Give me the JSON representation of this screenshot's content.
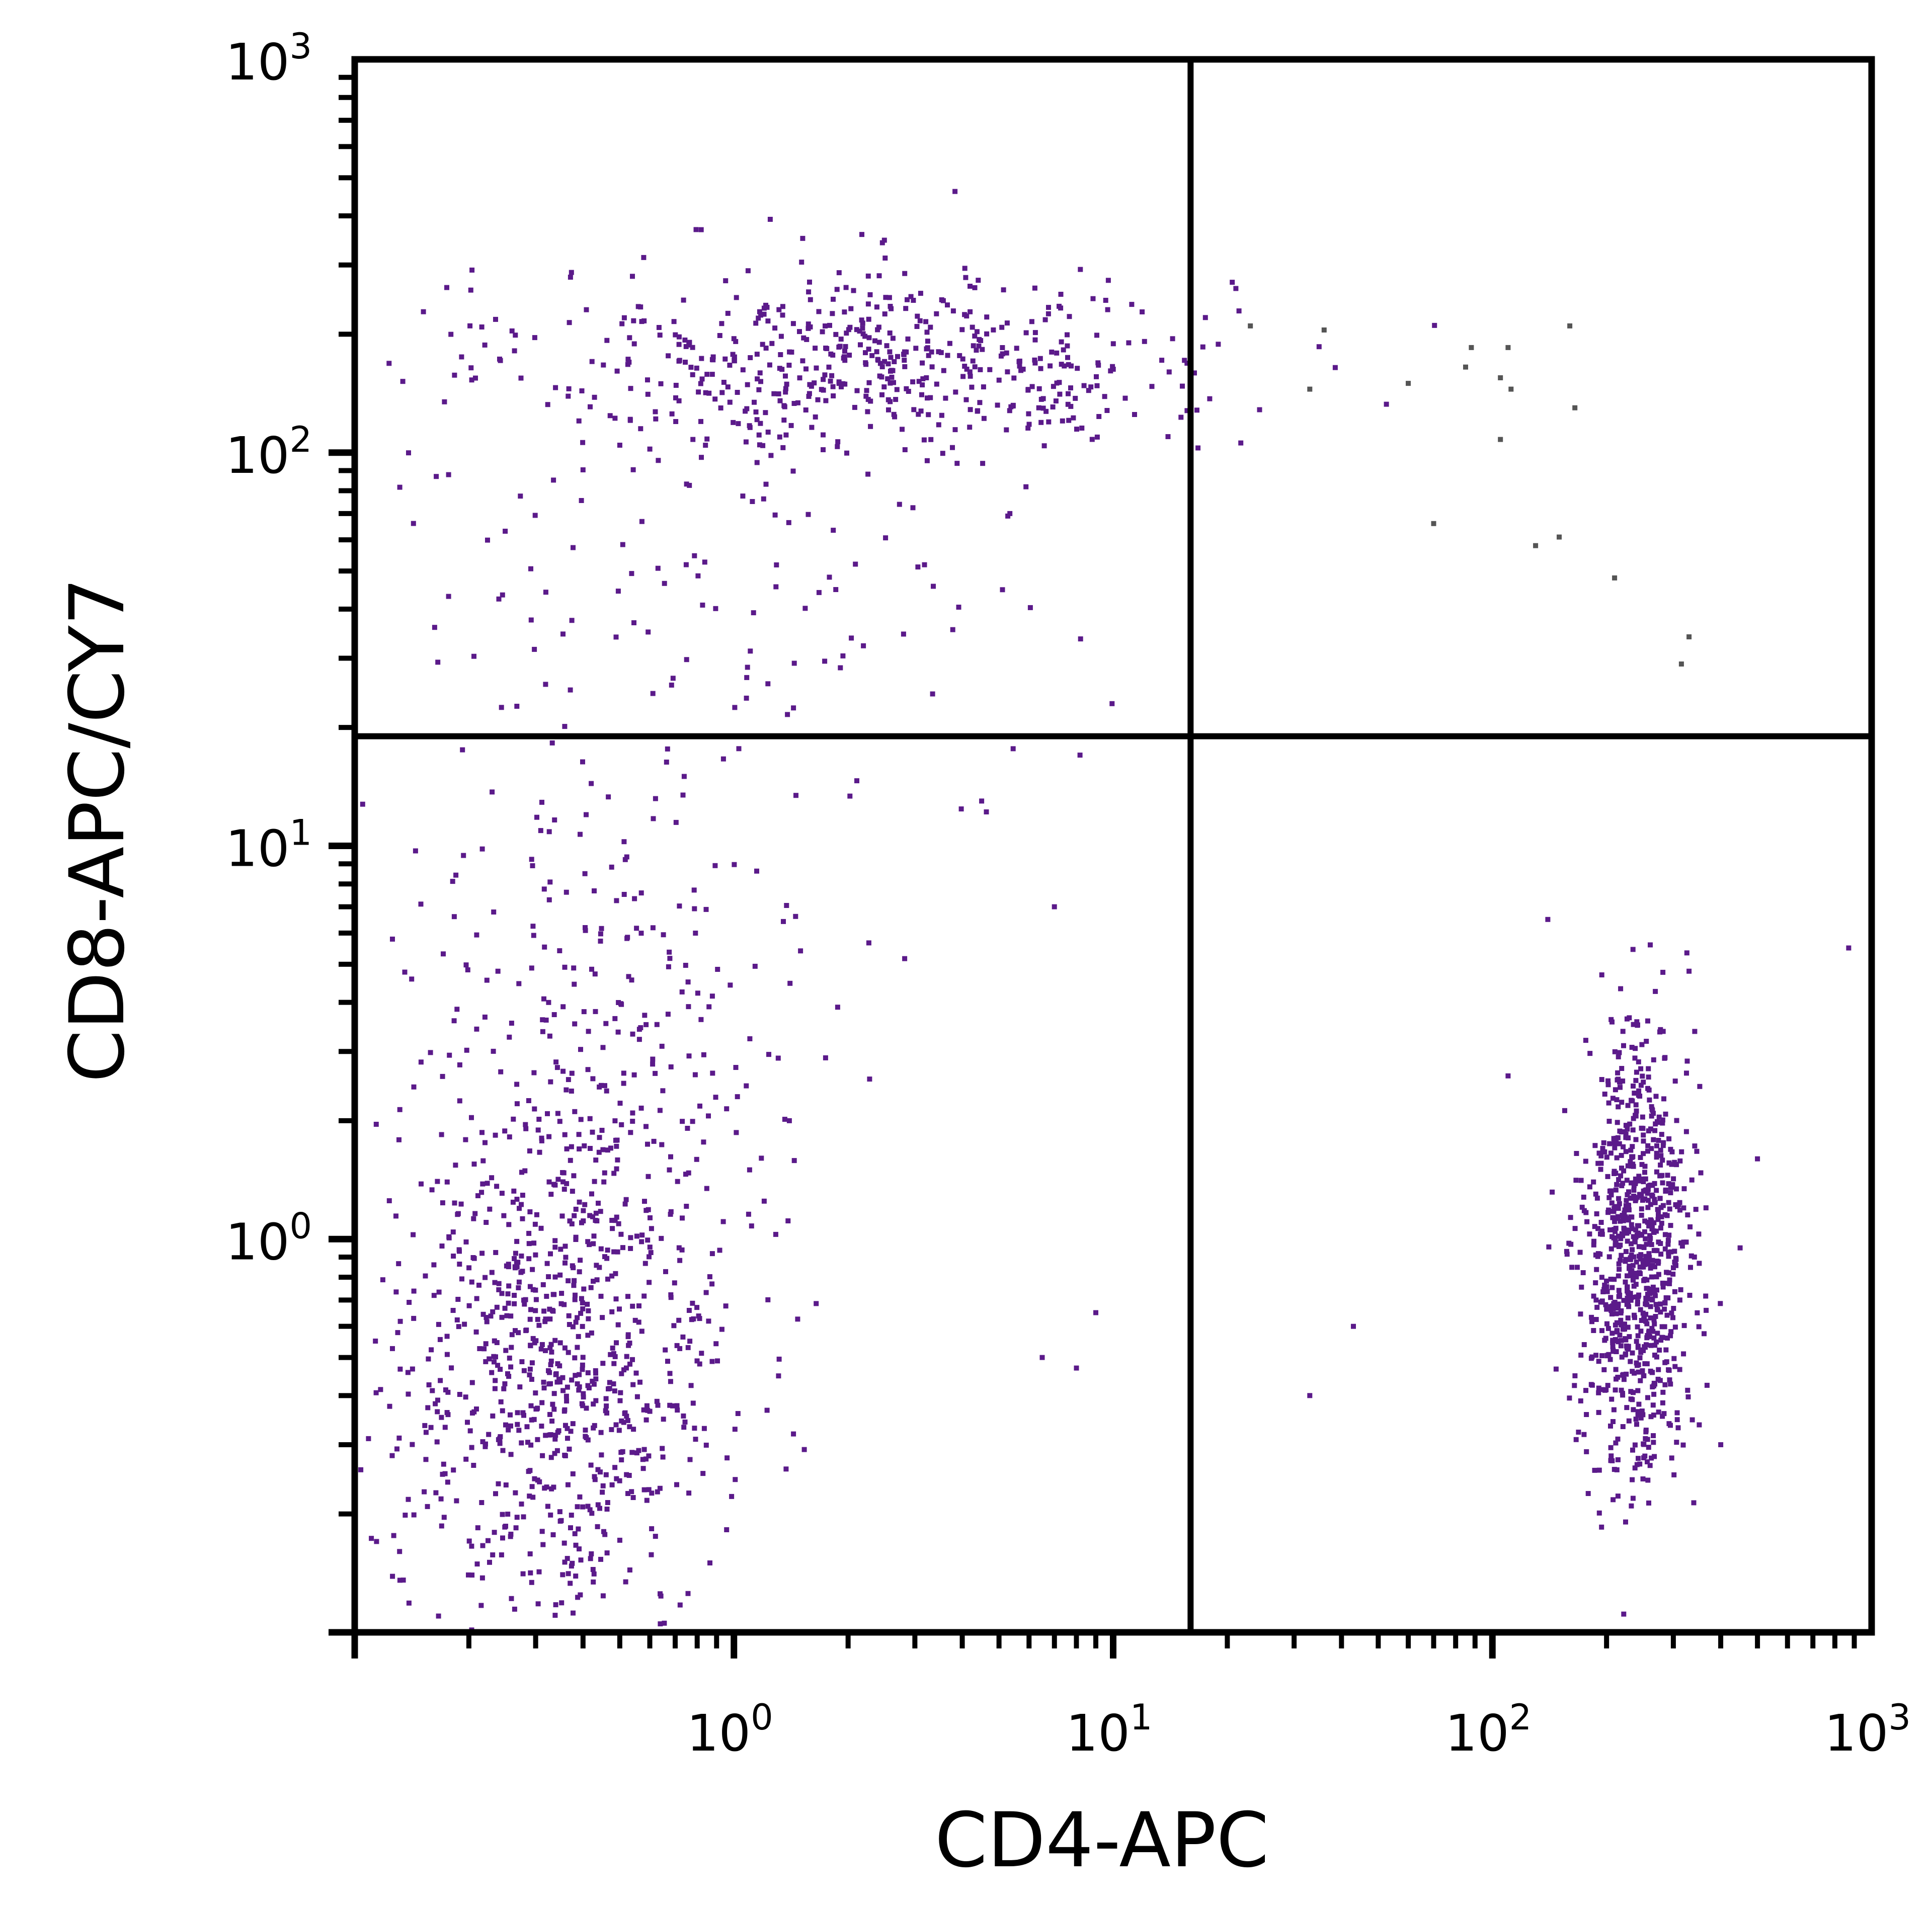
{
  "chart_data": {
    "type": "scatter",
    "xlabel": "CD4-APC",
    "ylabel": "CD8-APC/CY7",
    "xscale": "log",
    "yscale": "log",
    "xlim": [
      0.1,
      1000
    ],
    "ylim": [
      0.1,
      1000
    ],
    "x_ticks": [
      {
        "base": "10",
        "exp": "0",
        "value": 1
      },
      {
        "base": "10",
        "exp": "1",
        "value": 10
      },
      {
        "base": "10",
        "exp": "2",
        "value": 100
      },
      {
        "base": "10",
        "exp": "3",
        "value": 1000
      }
    ],
    "y_ticks": [
      {
        "base": "10",
        "exp": "0",
        "value": 1
      },
      {
        "base": "10",
        "exp": "1",
        "value": 10
      },
      {
        "base": "10",
        "exp": "2",
        "value": 100
      },
      {
        "base": "10",
        "exp": "3",
        "value": 1000
      }
    ],
    "quadrant_gates": {
      "x": 16,
      "y": 19
    },
    "grid": false,
    "colors": {
      "events": "#5b1a8a",
      "upper_right_events": "#555555",
      "frame": "#000000"
    },
    "populations": [
      {
        "x_center": 2.5,
        "y_center": 170,
        "x_spread_decades": 0.45,
        "y_spread_decades": 0.12,
        "count": 550
      },
      {
        "x_center": 0.9,
        "y_center": 60,
        "x_spread_decades": 0.45,
        "y_spread_decades": 0.35,
        "count": 160
      },
      {
        "x_center": 0.35,
        "y_center": 0.5,
        "x_spread_decades": 0.22,
        "y_spread_decades": 0.35,
        "count": 900
      },
      {
        "x_center": 0.45,
        "y_center": 4,
        "x_spread_decades": 0.3,
        "y_spread_decades": 0.35,
        "count": 200
      },
      {
        "x_center": 240,
        "y_center": 0.9,
        "x_spread_decades": 0.07,
        "y_spread_decades": 0.28,
        "count": 900
      }
    ],
    "outliers": [
      [
        7,
        7
      ],
      [
        4.5,
        13
      ],
      [
        6.5,
        0.5
      ],
      [
        8,
        0.47
      ],
      [
        9,
        0.65
      ],
      [
        16,
        0.95
      ],
      [
        1.4,
        2
      ],
      [
        1.1,
        1.5
      ],
      [
        43,
        0.6
      ],
      [
        33,
        0.4
      ],
      [
        140,
        6.5
      ],
      [
        870,
        5.5
      ],
      [
        500,
        1.6
      ],
      [
        450,
        0.95
      ],
      [
        330,
        4.8
      ],
      [
        400,
        0.3
      ],
      [
        110,
        2.6
      ]
    ],
    "upper_right_points": [
      [
        23,
        210
      ],
      [
        36,
        205
      ],
      [
        33,
        145
      ],
      [
        60,
        150
      ],
      [
        70,
        66
      ],
      [
        88,
        185
      ],
      [
        85,
        165
      ],
      [
        110,
        185
      ],
      [
        105,
        155
      ],
      [
        112,
        145
      ],
      [
        105,
        108
      ],
      [
        160,
        210
      ],
      [
        165,
        130
      ],
      [
        130,
        58
      ],
      [
        150,
        61
      ],
      [
        210,
        48
      ],
      [
        330,
        34
      ],
      [
        315,
        29
      ]
    ]
  }
}
